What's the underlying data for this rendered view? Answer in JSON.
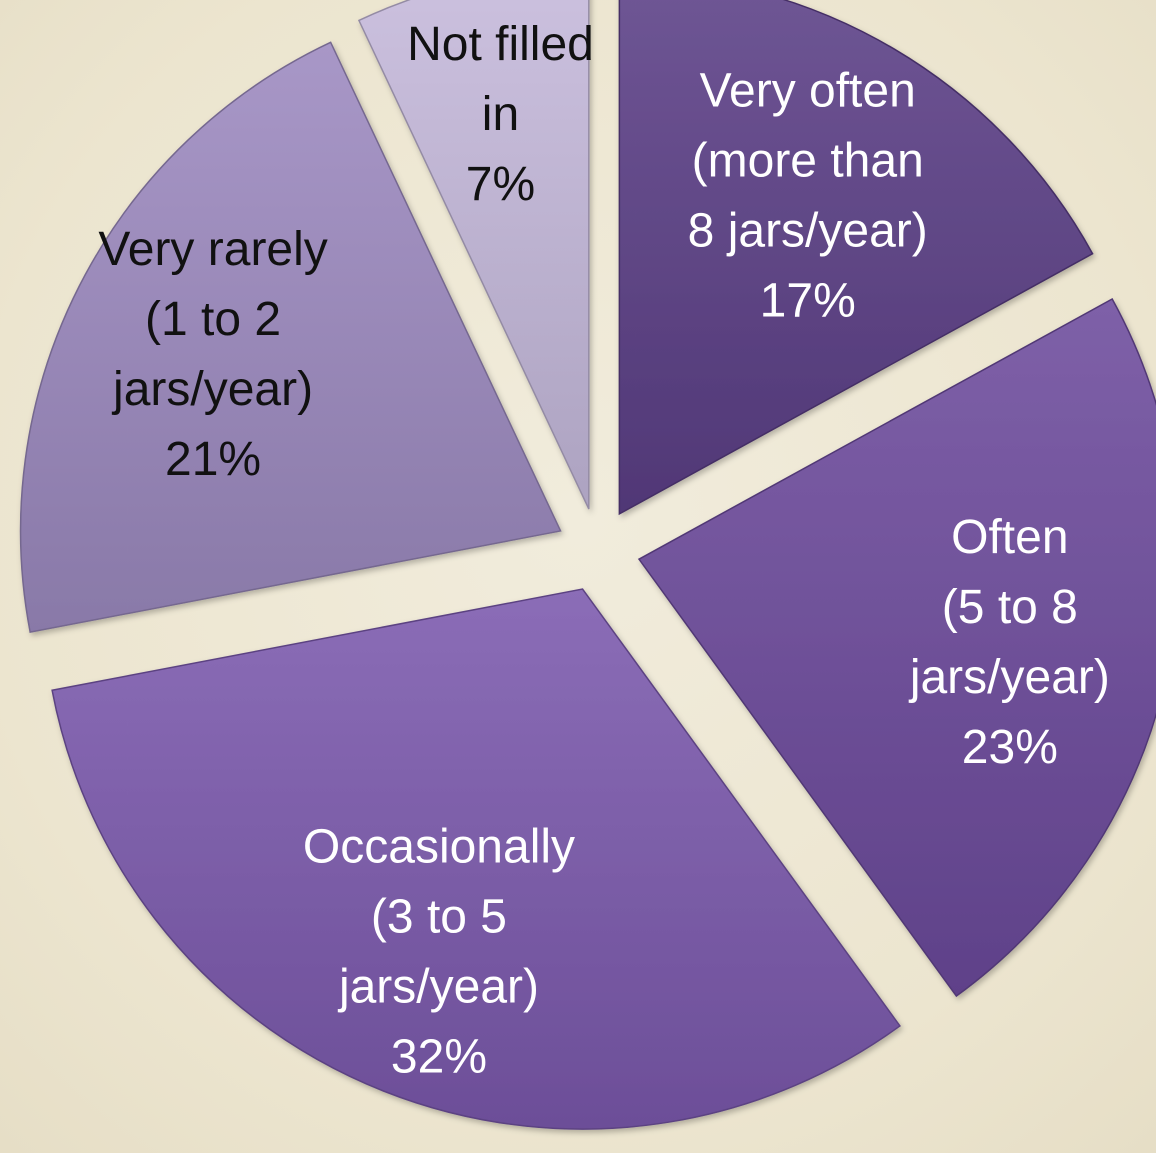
{
  "chart_data": {
    "type": "pie",
    "exploded": true,
    "slices": [
      {
        "label_lines": [
          "Very often",
          "(more than",
          "8 jars/year)",
          "17%"
        ],
        "value": 17,
        "color": "#5b3f86",
        "text_color": "#ffffff"
      },
      {
        "label_lines": [
          "Often",
          "(5 to 8",
          "jars/year)",
          "23%"
        ],
        "value": 23,
        "color": "#6c4a9c",
        "text_color": "#ffffff"
      },
      {
        "label_lines": [
          "Occasionally",
          "(3 to 5",
          "jars/year)",
          "32%"
        ],
        "value": 32,
        "color": "#7b59ad",
        "text_color": "#ffffff"
      },
      {
        "label_lines": [
          "Very rarely",
          "(1 to 2",
          "jars/year)",
          "21%"
        ],
        "value": 21,
        "color": "#9c89bf",
        "text_color": "#111111"
      },
      {
        "label_lines": [
          "Not filled",
          "in",
          "7%"
        ],
        "value": 7,
        "color": "#c5b9db",
        "text_color": "#111111"
      }
    ]
  }
}
